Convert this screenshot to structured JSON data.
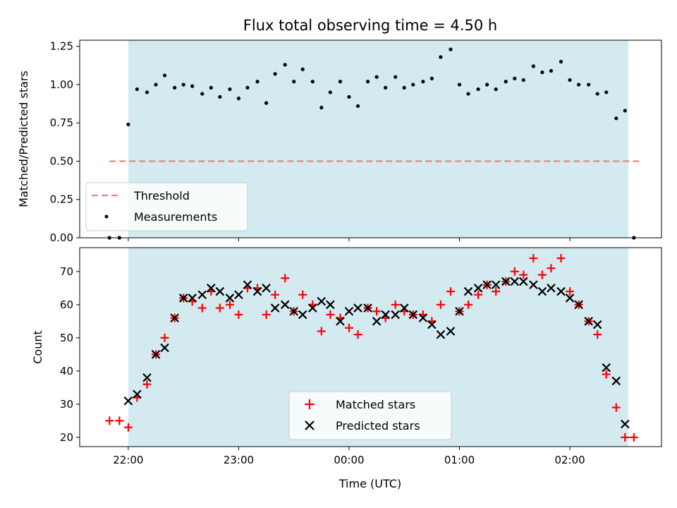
{
  "title": "Flux total observing time = 4.50 h",
  "colors": {
    "span": "#d3eaf0",
    "threshold": "#f28080",
    "matched": "#ff0000",
    "predicted": "#000000"
  },
  "chart_data": [
    {
      "type": "scatter",
      "ylabel": "Matched/Predicted stars",
      "ylim": [
        0,
        1.29
      ],
      "yticks": [
        "0.00",
        "0.25",
        "0.50",
        "0.75",
        "1.00",
        "1.25"
      ],
      "x_unit": "hours since 21:00 UTC",
      "xlim": [
        0.56,
        5.83
      ],
      "span": [
        1.0,
        5.53
      ],
      "threshold": {
        "label": "Threshold",
        "value": 0.5,
        "x": [
          0.83,
          5.63
        ]
      },
      "legend": [
        "Threshold",
        "Measurements"
      ],
      "legend_position": "lower-left",
      "measurements": {
        "label": "Measurements",
        "x": [
          0.83,
          0.92,
          1.0,
          1.08,
          1.17,
          1.25,
          1.33,
          1.42,
          1.5,
          1.58,
          1.67,
          1.75,
          1.83,
          1.92,
          2.0,
          2.08,
          2.17,
          2.25,
          2.33,
          2.42,
          2.5,
          2.58,
          2.67,
          2.75,
          2.83,
          2.92,
          3.0,
          3.08,
          3.17,
          3.25,
          3.33,
          3.42,
          3.5,
          3.58,
          3.67,
          3.75,
          3.83,
          3.92,
          4.0,
          4.08,
          4.17,
          4.25,
          4.33,
          4.42,
          4.5,
          4.58,
          4.67,
          4.75,
          4.83,
          4.92,
          5.0,
          5.08,
          5.17,
          5.25,
          5.33,
          5.42,
          5.5,
          5.58
        ],
        "y": [
          0.0,
          0.0,
          0.74,
          0.97,
          0.95,
          1.0,
          1.06,
          0.98,
          1.0,
          0.99,
          0.94,
          0.98,
          0.92,
          0.97,
          0.91,
          0.98,
          1.02,
          0.88,
          1.07,
          1.13,
          1.02,
          1.1,
          1.02,
          0.85,
          0.95,
          1.02,
          0.92,
          0.86,
          1.02,
          1.05,
          0.98,
          1.05,
          0.98,
          1.0,
          1.02,
          1.04,
          1.18,
          1.23,
          1.0,
          0.94,
          0.97,
          1.0,
          0.97,
          1.02,
          1.04,
          1.03,
          1.12,
          1.08,
          1.09,
          1.15,
          1.03,
          1.0,
          1.0,
          0.94,
          0.95,
          0.78,
          0.83,
          0.0
        ]
      }
    },
    {
      "type": "scatter",
      "ylabel": "Count",
      "xlabel": "Time (UTC)",
      "ylim": [
        17.2,
        77.2
      ],
      "yticks": [
        "20",
        "30",
        "40",
        "50",
        "60",
        "70"
      ],
      "xticks": [
        "22:00",
        "23:00",
        "00:00",
        "01:00",
        "02:00"
      ],
      "xtick_values": [
        1,
        2,
        3,
        4,
        5
      ],
      "x_unit": "hours since 21:00 UTC",
      "xlim": [
        0.56,
        5.83
      ],
      "span": [
        1.0,
        5.53
      ],
      "legend": [
        "Matched stars",
        "Predicted stars"
      ],
      "legend_position": "lower-center",
      "series": [
        {
          "name": "Matched stars",
          "marker": "plus",
          "x": [
            0.83,
            0.92,
            1.0,
            1.08,
            1.17,
            1.25,
            1.33,
            1.42,
            1.5,
            1.58,
            1.67,
            1.75,
            1.83,
            1.92,
            2.0,
            2.08,
            2.17,
            2.25,
            2.33,
            2.42,
            2.5,
            2.58,
            2.67,
            2.75,
            2.83,
            2.92,
            3.0,
            3.08,
            3.17,
            3.25,
            3.33,
            3.42,
            3.5,
            3.58,
            3.67,
            3.75,
            3.83,
            3.92,
            4.0,
            4.08,
            4.17,
            4.25,
            4.33,
            4.42,
            4.5,
            4.58,
            4.67,
            4.75,
            4.83,
            4.92,
            5.0,
            5.08,
            5.17,
            5.25,
            5.33,
            5.42,
            5.5,
            5.58
          ],
          "y": [
            25,
            25,
            23,
            32,
            36,
            45,
            50,
            56,
            62,
            61,
            59,
            64,
            59,
            60,
            57,
            65,
            65,
            57,
            63,
            68,
            58,
            63,
            60,
            52,
            57,
            56,
            53,
            51,
            59,
            58,
            56,
            60,
            58,
            57,
            57,
            55,
            60,
            64,
            58,
            60,
            63,
            66,
            64,
            67,
            70,
            69,
            74,
            69,
            71,
            74,
            64,
            60,
            55,
            51,
            39,
            29,
            20,
            20
          ]
        },
        {
          "name": "Predicted stars",
          "marker": "x",
          "x": [
            1.0,
            1.08,
            1.17,
            1.25,
            1.33,
            1.42,
            1.5,
            1.58,
            1.67,
            1.75,
            1.83,
            1.92,
            2.0,
            2.08,
            2.17,
            2.25,
            2.33,
            2.42,
            2.5,
            2.58,
            2.67,
            2.75,
            2.83,
            2.92,
            3.0,
            3.08,
            3.17,
            3.25,
            3.33,
            3.42,
            3.5,
            3.58,
            3.67,
            3.75,
            3.83,
            3.92,
            4.0,
            4.08,
            4.17,
            4.25,
            4.33,
            4.42,
            4.5,
            4.58,
            4.67,
            4.75,
            4.83,
            4.92,
            5.0,
            5.08,
            5.17,
            5.25,
            5.33,
            5.42,
            5.5
          ],
          "y": [
            31,
            33,
            38,
            45,
            47,
            56,
            62,
            62,
            63,
            65,
            64,
            62,
            63,
            66,
            64,
            65,
            59,
            60,
            58,
            57,
            59,
            61,
            60,
            55,
            58,
            59,
            59,
            55,
            57,
            57,
            59,
            57,
            56,
            54,
            51,
            52,
            58,
            64,
            65,
            66,
            66,
            67,
            67,
            67,
            66,
            64,
            65,
            64,
            62,
            60,
            55,
            54,
            41,
            37,
            24
          ]
        }
      ]
    }
  ]
}
